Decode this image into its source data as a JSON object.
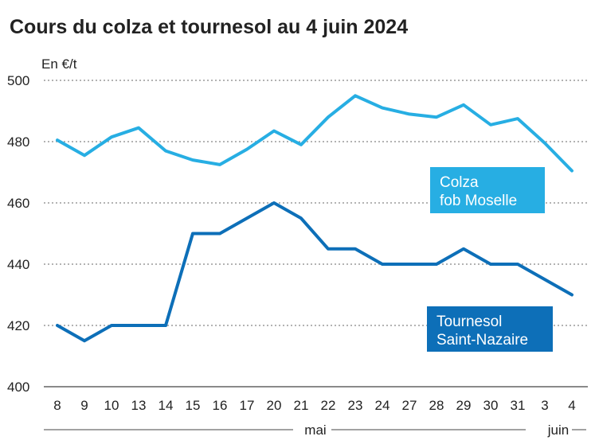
{
  "chart_data": {
    "type": "line",
    "title": "Cours du colza et tournesol au 4 juin 2024",
    "unit_label": "En €/t",
    "x": [
      "8",
      "9",
      "10",
      "13",
      "14",
      "15",
      "16",
      "17",
      "20",
      "21",
      "22",
      "23",
      "24",
      "27",
      "28",
      "29",
      "30",
      "31",
      "3",
      "4"
    ],
    "month_labels": [
      {
        "label": "mai",
        "from": 0,
        "to": 17
      },
      {
        "label": "juin",
        "from": 18,
        "to": 19
      }
    ],
    "ylim": [
      400,
      500
    ],
    "yticks": [
      "400",
      "420",
      "440",
      "460",
      "480",
      "500"
    ],
    "grid": true,
    "series": [
      {
        "name_lines": [
          "Colza",
          "fob Moselle"
        ],
        "color": "#27aee3",
        "values": [
          480.5,
          475.5,
          481.5,
          484.5,
          477,
          474,
          472.5,
          477.5,
          483.5,
          479,
          488,
          495,
          491,
          489,
          488,
          492,
          485.5,
          487.5,
          479.5,
          470.5
        ]
      },
      {
        "name_lines": [
          "Tournesol",
          "Saint-Nazaire"
        ],
        "color": "#0d6fb8",
        "values": [
          420,
          415,
          420,
          420,
          420,
          450,
          450,
          455,
          460,
          455,
          445,
          445,
          440,
          440,
          440,
          445,
          440,
          440,
          435,
          430
        ]
      }
    ]
  }
}
